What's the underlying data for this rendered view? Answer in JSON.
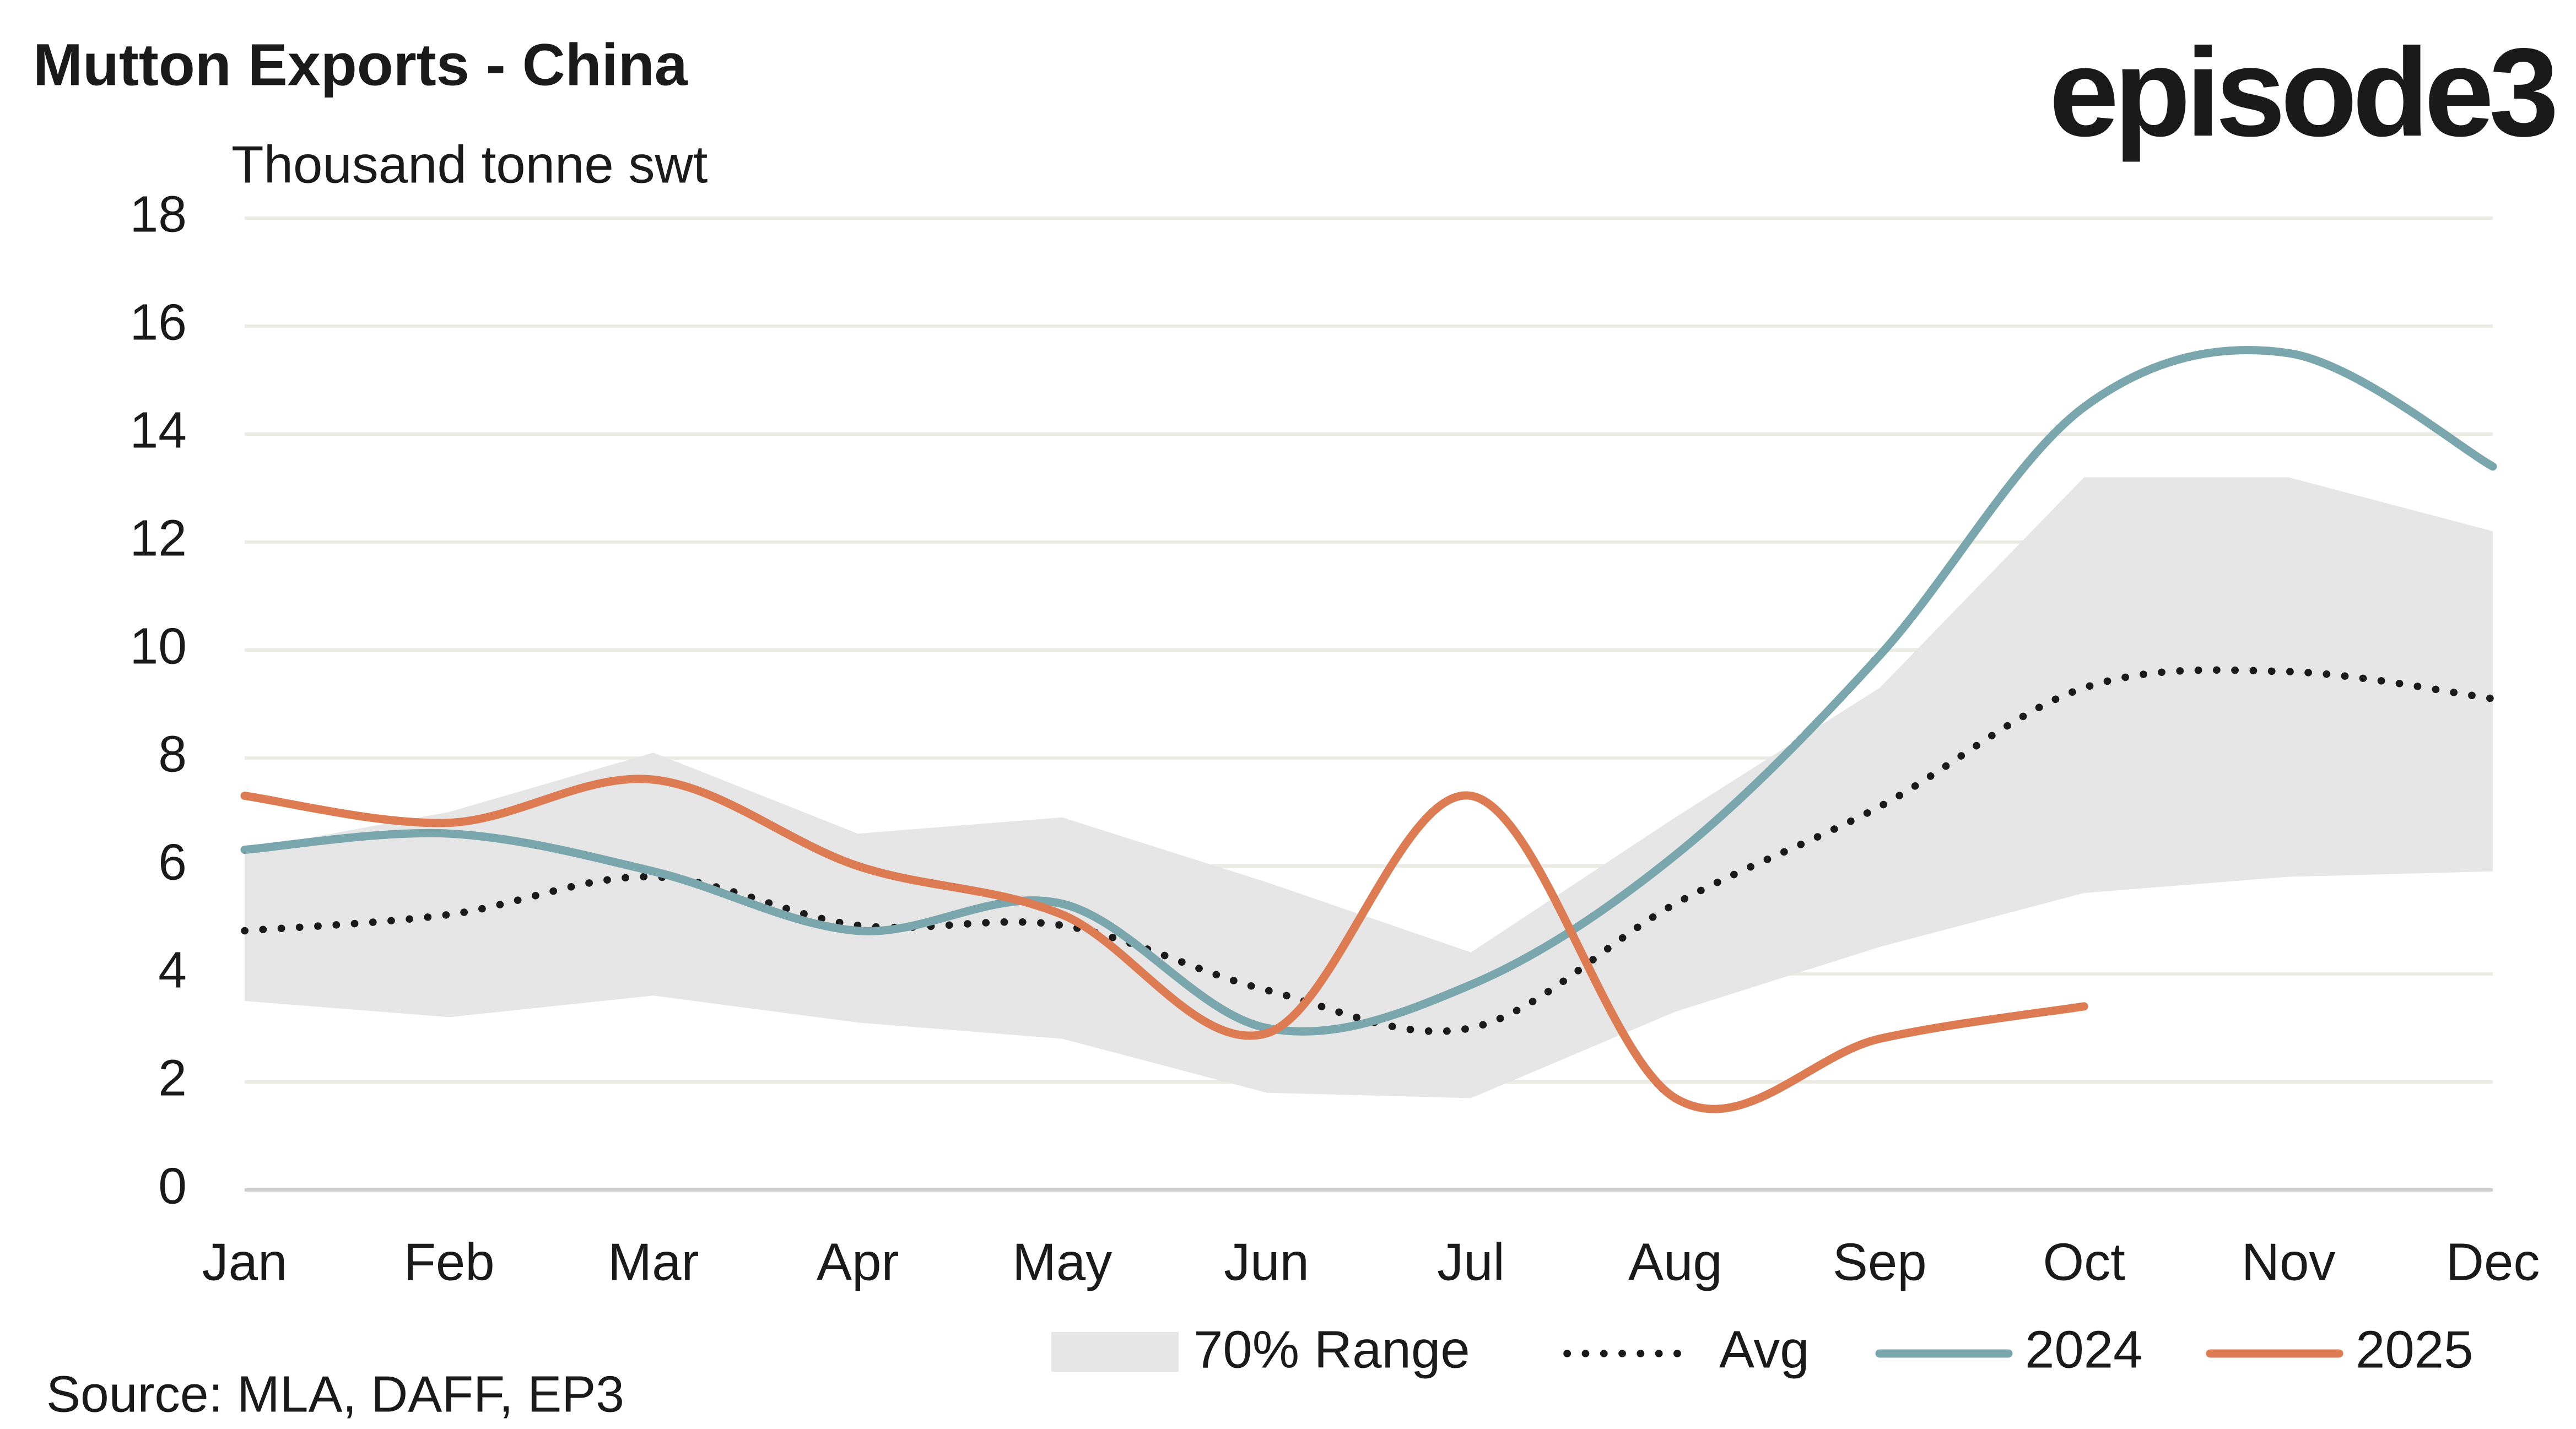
{
  "chart_data": {
    "type": "line",
    "title": "Mutton Exports - China",
    "subtitle": "Thousand tonne swt",
    "logo": "episode3",
    "source": "Source: MLA, DAFF, EP3",
    "categories": [
      "Jan",
      "Feb",
      "Mar",
      "Apr",
      "May",
      "Jun",
      "Jul",
      "Aug",
      "Sep",
      "Oct",
      "Nov",
      "Dec"
    ],
    "ylim": [
      0,
      18
    ],
    "yticks": [
      0,
      2,
      4,
      6,
      8,
      10,
      12,
      14,
      16,
      18
    ],
    "grid": true,
    "range": {
      "name": "70% Range",
      "color": "#e6e6e6",
      "low": [
        3.5,
        3.2,
        3.6,
        3.1,
        2.8,
        1.8,
        1.7,
        3.3,
        4.5,
        5.5,
        5.8,
        5.9
      ],
      "high": [
        6.3,
        7.0,
        8.1,
        6.6,
        6.9,
        5.7,
        4.4,
        6.9,
        9.3,
        13.2,
        13.2,
        12.2
      ]
    },
    "series": [
      {
        "name": "Avg",
        "color": "#1a1a1a",
        "dotted": true,
        "values": [
          4.8,
          5.1,
          5.8,
          4.9,
          4.9,
          3.7,
          3.0,
          5.3,
          7.1,
          9.3,
          9.6,
          9.1
        ]
      },
      {
        "name": "2024",
        "color": "#7aa6ad",
        "values": [
          6.3,
          6.6,
          5.9,
          4.8,
          5.3,
          3.0,
          3.8,
          6.2,
          9.9,
          14.5,
          15.5,
          13.4
        ]
      },
      {
        "name": "2025",
        "color": "#dd7b52",
        "values": [
          7.3,
          6.8,
          7.6,
          6.0,
          5.1,
          2.9,
          7.3,
          1.7,
          2.8,
          3.4,
          null,
          null
        ]
      }
    ]
  }
}
